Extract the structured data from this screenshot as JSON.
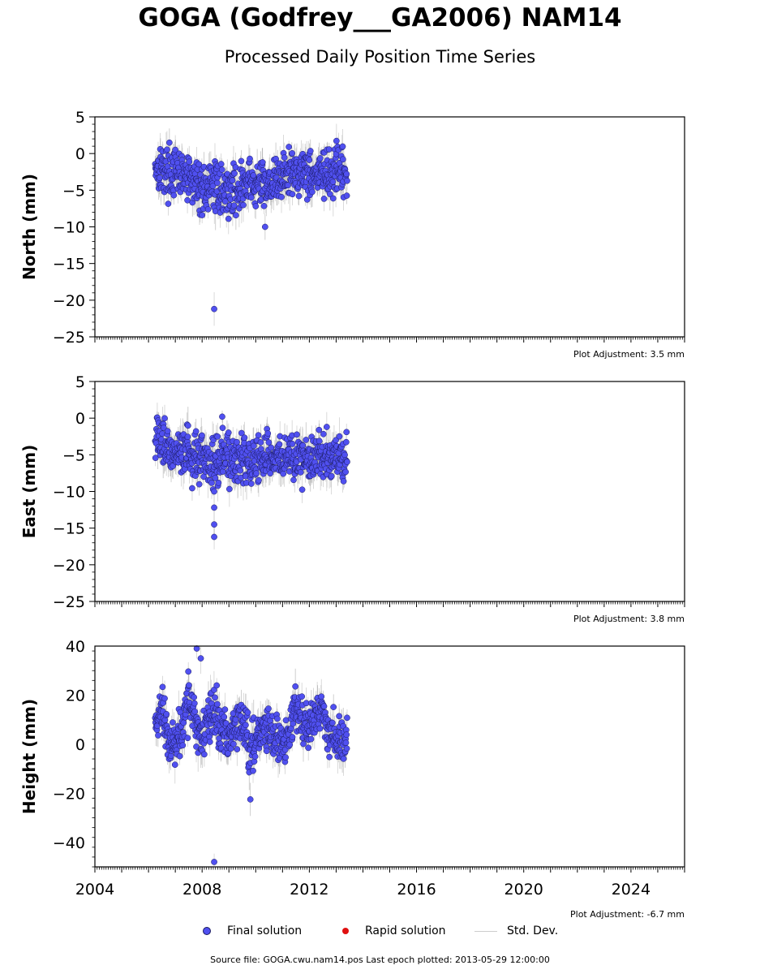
{
  "title": "GOGA (Godfrey___GA2006) NAM14",
  "subtitle": "Processed Daily Position Time Series",
  "colors": {
    "final_solution": "#5050f0",
    "final_edge": "#1a1a60",
    "rapid_solution": "#e01010",
    "std_dev": "#cccccc",
    "std_dev_dense": "#555555"
  },
  "legend": {
    "final": "Final solution",
    "rapid": "Rapid solution",
    "std": "Std. Dev."
  },
  "source_text": "Source file: GOGA.cwu.nam14.pos  Last epoch plotted: 2013-05-29 12:00:00",
  "chart_data": [
    {
      "type": "scatter",
      "ylabel": "North (mm)",
      "ylim": [
        -25,
        5
      ],
      "yticks": [
        5,
        0,
        -5,
        -10,
        -15,
        -20,
        -25
      ],
      "xlim": [
        2004,
        2026
      ],
      "xticks": [
        2004,
        2008,
        2012,
        2016,
        2020,
        2024
      ],
      "show_xtick_labels": false,
      "adjustment_text": "Plot Adjustment: 3.5 mm",
      "series": [
        {
          "name": "Final solution",
          "x": [
            2006.25,
            2006.5,
            2006.75,
            2007.0,
            2007.25,
            2007.5,
            2007.75,
            2008.0,
            2008.25,
            2008.5,
            2008.75,
            2009.0,
            2009.25,
            2009.5,
            2009.75,
            2010.0,
            2010.25,
            2010.5,
            2010.75,
            2011.0,
            2011.25,
            2011.5,
            2011.75,
            2012.0,
            2012.25,
            2012.5,
            2012.75,
            2013.0,
            2013.25,
            2013.41
          ],
          "y": [
            -1.5,
            -2.0,
            -2.5,
            -2.8,
            -3.0,
            -3.5,
            -4.0,
            -4.5,
            -4.8,
            -4.2,
            -5.0,
            -5.2,
            -4.8,
            -4.5,
            -4.0,
            -4.5,
            -4.2,
            -3.8,
            -4.0,
            -3.0,
            -2.8,
            -2.5,
            -2.2,
            -2.5,
            -3.0,
            -2.8,
            -3.2,
            -2.5,
            -2.8,
            -3.0
          ]
        }
      ],
      "outliers": {
        "x": [
          2008.45,
          2010.35,
          2008.0
        ],
        "y": [
          -21.2,
          -10.0,
          -8.4
        ]
      }
    },
    {
      "type": "scatter",
      "ylabel": "East (mm)",
      "ylim": [
        -25,
        5
      ],
      "yticks": [
        5,
        0,
        -5,
        -10,
        -15,
        -20,
        -25
      ],
      "xlim": [
        2004,
        2026
      ],
      "xticks": [
        2004,
        2008,
        2012,
        2016,
        2020,
        2024
      ],
      "show_xtick_labels": false,
      "adjustment_text": "Plot Adjustment: 3.8 mm",
      "series": [
        {
          "name": "Final solution",
          "x": [
            2006.25,
            2006.5,
            2006.75,
            2007.0,
            2007.25,
            2007.5,
            2007.75,
            2008.0,
            2008.25,
            2008.5,
            2008.75,
            2009.0,
            2009.25,
            2009.5,
            2009.75,
            2010.0,
            2010.25,
            2010.5,
            2010.75,
            2011.0,
            2011.25,
            2011.5,
            2011.75,
            2012.0,
            2012.25,
            2012.5,
            2012.75,
            2013.0,
            2013.25,
            2013.41
          ],
          "y": [
            -2.0,
            -3.5,
            -4.0,
            -4.3,
            -4.5,
            -5.0,
            -5.5,
            -5.2,
            -5.5,
            -5.8,
            -5.5,
            -5.6,
            -5.8,
            -5.5,
            -5.8,
            -5.2,
            -5.5,
            -5.0,
            -5.5,
            -5.6,
            -5.2,
            -5.8,
            -5.5,
            -5.6,
            -5.8,
            -5.0,
            -5.2,
            -5.5,
            -5.6,
            -5.8
          ]
        }
      ],
      "outliers": {
        "x": [
          2008.45,
          2008.45,
          2008.45,
          2008.45,
          2008.75,
          2012.65
        ],
        "y": [
          -16.2,
          -14.5,
          -12.2,
          -10.0,
          0.2,
          -1.2
        ]
      }
    },
    {
      "type": "scatter",
      "ylabel": "Height (mm)",
      "ylim": [
        -50,
        40
      ],
      "yticks": [
        40,
        20,
        0,
        -20,
        -40
      ],
      "xlim": [
        2004,
        2026
      ],
      "xticks": [
        2004,
        2008,
        2012,
        2016,
        2020,
        2024
      ],
      "show_xtick_labels": true,
      "adjustment_text": "Plot Adjustment: -6.7 mm",
      "series": [
        {
          "name": "Final solution",
          "x": [
            2006.25,
            2006.5,
            2006.75,
            2007.0,
            2007.25,
            2007.5,
            2007.75,
            2008.0,
            2008.25,
            2008.5,
            2008.75,
            2009.0,
            2009.25,
            2009.5,
            2009.75,
            2010.0,
            2010.25,
            2010.5,
            2010.75,
            2011.0,
            2011.25,
            2011.5,
            2011.75,
            2012.0,
            2012.25,
            2012.5,
            2012.75,
            2013.0,
            2013.25,
            2013.41
          ],
          "y": [
            8,
            15,
            2,
            0,
            5,
            18,
            10,
            2,
            12,
            15,
            5,
            2,
            8,
            10,
            -2,
            0,
            8,
            5,
            2,
            0,
            5,
            18,
            8,
            5,
            10,
            15,
            5,
            2,
            3,
            0
          ]
        }
      ],
      "outliers": {
        "x": [
          2008.45,
          2009.8,
          2007.8,
          2007.95
        ],
        "y": [
          -48.0,
          -22.5,
          39.0,
          35.0
        ]
      }
    }
  ]
}
